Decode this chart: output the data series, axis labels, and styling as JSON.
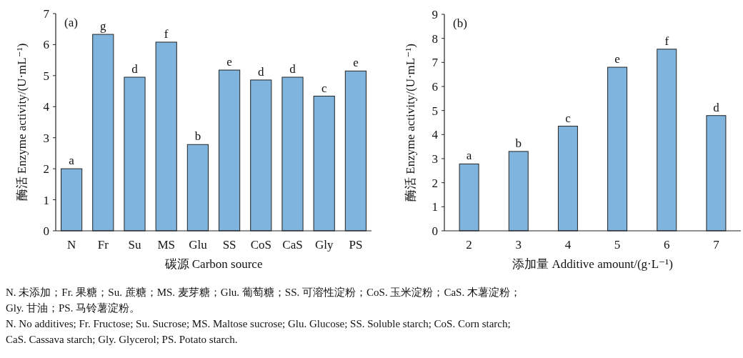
{
  "chart_data": [
    {
      "type": "bar",
      "title": "(a)",
      "xlabel": "碳源 Carbon source",
      "ylabel": "酶活 Enzyme activity/(U·mL⁻¹)",
      "categories": [
        "N",
        "Fr",
        "Su",
        "MS",
        "Glu",
        "SS",
        "CoS",
        "CaS",
        "Gly",
        "PS"
      ],
      "values": [
        2.0,
        6.33,
        4.95,
        6.08,
        2.78,
        5.18,
        4.86,
        4.95,
        4.34,
        5.15
      ],
      "value_labels": [
        "a",
        "g",
        "d",
        "f",
        "b",
        "e",
        "d",
        "d",
        "c",
        "e"
      ],
      "color": "#7eb4dd",
      "ylim": [
        0,
        7
      ],
      "yticks": [
        0,
        1,
        2,
        3,
        4,
        5,
        6,
        7
      ],
      "annotations": [
        "N. 未添加；Fr. 果糖；Su. 蔗糖；MS. 麦芽糖；Glu. 葡萄糖；SS. 可溶性淀粉；CoS. 玉米淀粉；CaS. 木薯淀粉；",
        "Gly. 甘油；PS. 马铃薯淀粉。",
        "N. No additives; Fr. Fructose; Su. Sucrose; MS. Maltose sucrose;  Glu. Glucose; SS. Soluble starch;  CoS. Corn starch;",
        "CaS. Cassava starch;  Gly. Glycerol; PS. Potato starch."
      ]
    },
    {
      "type": "bar",
      "title": "(b)",
      "xlabel": "添加量 Additive amount/(g·L⁻¹)",
      "ylabel": "酶活 Enzyme activity/(U·mL⁻¹)",
      "categories": [
        "2",
        "3",
        "4",
        "5",
        "6",
        "7"
      ],
      "values": [
        2.78,
        3.3,
        4.35,
        6.8,
        7.55,
        4.79
      ],
      "value_labels": [
        "a",
        "b",
        "c",
        "e",
        "f",
        "d"
      ],
      "color": "#7eb4dd",
      "ylim": [
        0,
        9
      ],
      "yticks": [
        0,
        1,
        2,
        3,
        4,
        5,
        6,
        7,
        8,
        9
      ]
    }
  ]
}
